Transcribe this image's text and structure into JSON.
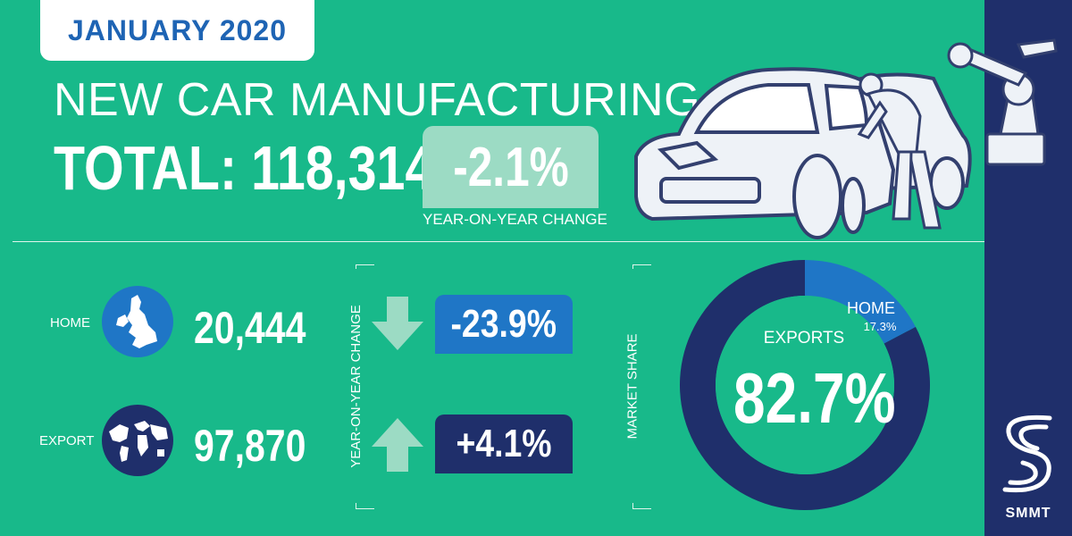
{
  "header": {
    "date": "JANUARY 2020",
    "title": "NEW CAR MANUFACTURING",
    "total_label": "TOTAL:",
    "total_value": "118,314",
    "yoy_value": "-2.1%",
    "yoy_label": "YEAR-ON-YEAR CHANGE"
  },
  "rows": {
    "change_axis_label": "YEAR-ON-YEAR CHANGE",
    "home": {
      "label": "HOME",
      "value": "20,444",
      "change": "-23.9%",
      "icon": "uk-map-icon",
      "arrow": "arrow-down-icon"
    },
    "export": {
      "label": "EXPORT",
      "value": "97,870",
      "change": "+4.1%",
      "icon": "world-map-icon",
      "arrow": "arrow-up-icon"
    }
  },
  "colors": {
    "background": "#18b98a",
    "home_blue": "#1f76c6",
    "export_navy": "#1f2f6b",
    "yoy_box": "#9cdbc4"
  },
  "chart_data": {
    "type": "pie",
    "donut": true,
    "axis_label": "MARKET SHARE",
    "title": "",
    "categories": [
      "EXPORTS",
      "HOME"
    ],
    "values": [
      82.7,
      17.3
    ],
    "labels": [
      "82.7%",
      "17.3%"
    ],
    "colors": [
      "#1f2f6b",
      "#1f76c6"
    ]
  },
  "logo": {
    "text": "SMMT",
    "icon": "smmt-logo-icon"
  }
}
